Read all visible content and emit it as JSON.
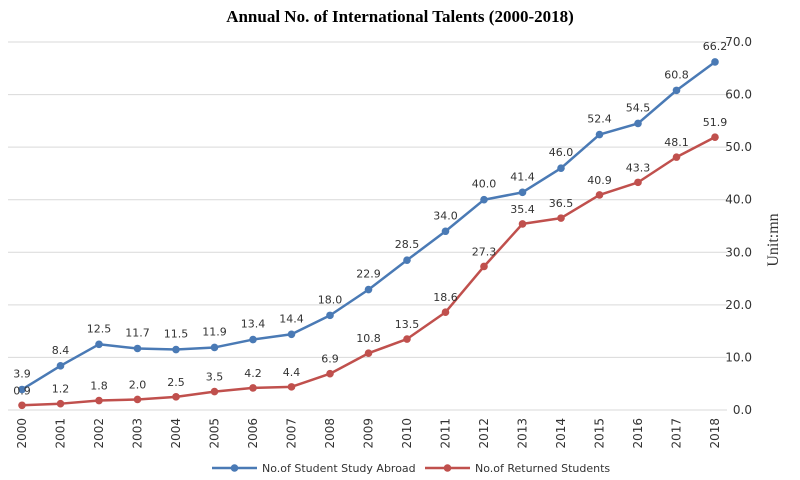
{
  "chart_data": {
    "type": "line",
    "title": "Annual No. of International Talents (2000-2018)",
    "xlabel": "",
    "ylabel": "Unit:mn",
    "categories": [
      "2000",
      "2001",
      "2002",
      "2003",
      "2004",
      "2005",
      "2006",
      "2007",
      "2008",
      "2009",
      "2010",
      "2011",
      "2012",
      "2013",
      "2014",
      "2015",
      "2016",
      "2017",
      "2018"
    ],
    "ylim": [
      0,
      70
    ],
    "yticks": [
      "0.0",
      "10.0",
      "20.0",
      "30.0",
      "40.0",
      "50.0",
      "60.0",
      "70.0"
    ],
    "yaxis_side": "right",
    "grid": true,
    "legend_position": "bottom",
    "series": [
      {
        "name": "No.of Student Study Abroad",
        "color": "#4a7ab5",
        "values": [
          3.9,
          8.4,
          12.5,
          11.7,
          11.5,
          11.9,
          13.4,
          14.4,
          18.0,
          22.9,
          28.5,
          34.0,
          40.0,
          41.4,
          46.0,
          52.4,
          54.5,
          60.8,
          66.2
        ],
        "labels": [
          "3.9",
          "8.4",
          "12.5",
          "11.7",
          "11.5",
          "11.9",
          "13.4",
          "14.4",
          "18.0",
          "22.9",
          "28.5",
          "34.0",
          "40.0",
          "41.4",
          "46.0",
          "52.4",
          "54.5",
          "60.8",
          "66.2"
        ]
      },
      {
        "name": "No.of Returned Students",
        "color": "#c0504d",
        "values": [
          0.9,
          1.2,
          1.8,
          2.0,
          2.5,
          3.5,
          4.2,
          4.4,
          6.9,
          10.8,
          13.5,
          18.6,
          27.3,
          35.4,
          36.5,
          40.9,
          43.3,
          48.1,
          51.9
        ],
        "labels": [
          "0.9",
          "1.2",
          "1.8",
          "2.0",
          "2.5",
          "3.5",
          "4.2",
          "4.4",
          "6.9",
          "10.8",
          "13.5",
          "18.6",
          "27.3",
          "35.4",
          "36.5",
          "40.9",
          "43.3",
          "48.1",
          "51.9"
        ]
      }
    ]
  }
}
